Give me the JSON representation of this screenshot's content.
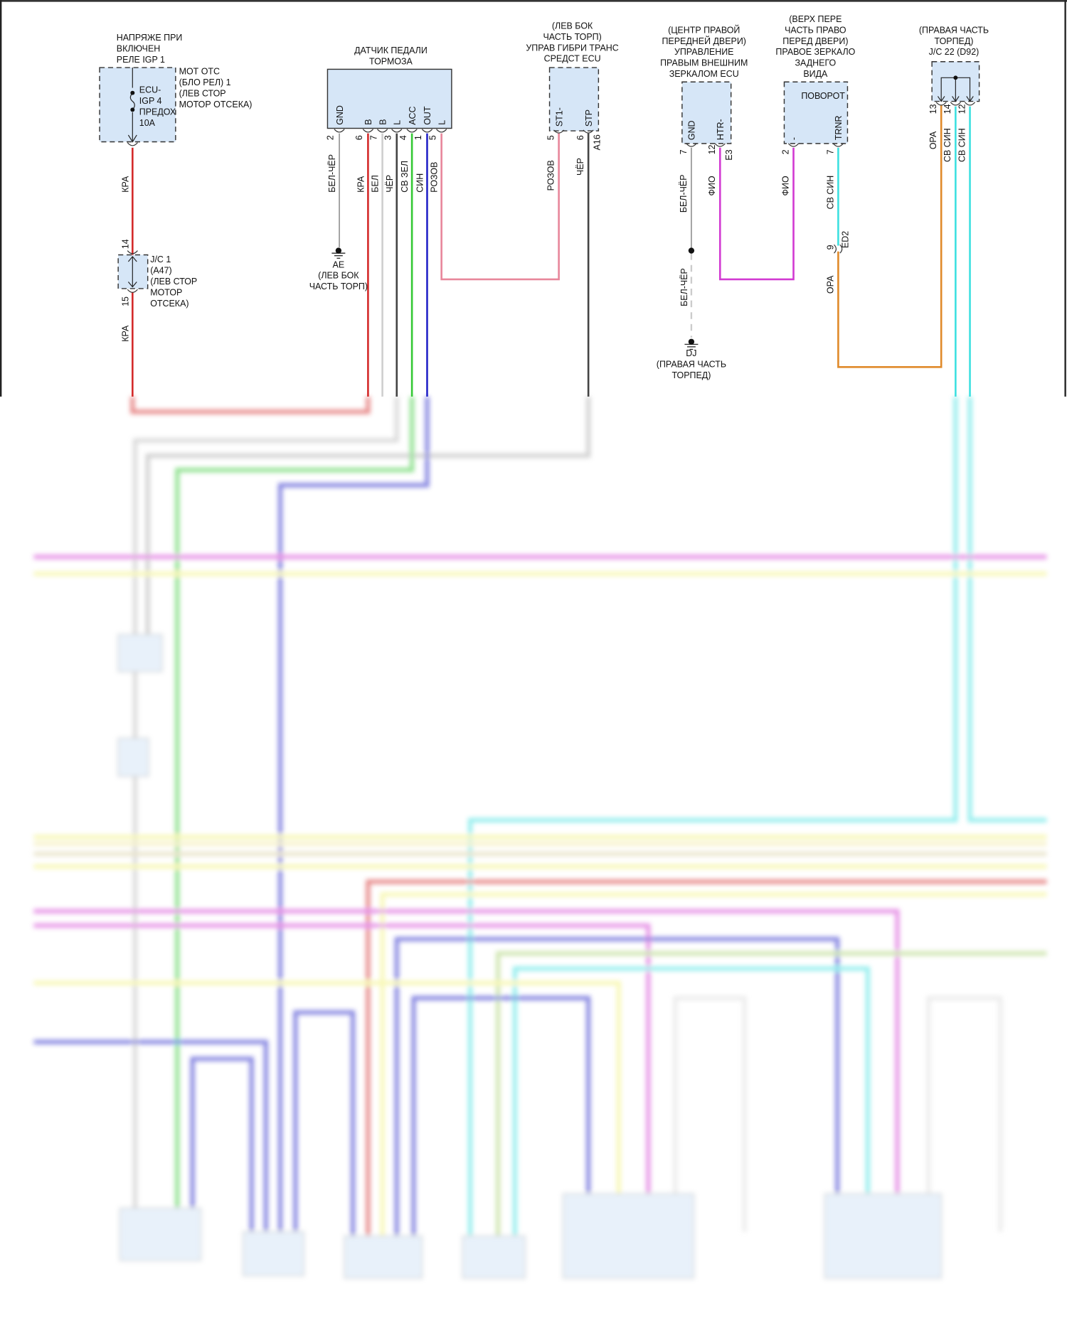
{
  "colors": {
    "red": "#d42a2a",
    "grey": "#9a9a9a",
    "white": "#cfcfcf",
    "black": "#444444",
    "green": "#35c935",
    "blue": "#2424c8",
    "pink": "#e8879b",
    "violet": "#d23ad2",
    "cyan": "#3ee0e0",
    "orange": "#e08a2a",
    "yellow": "#f2f27a",
    "connector_fill": "#d6e6f7"
  },
  "fuse": {
    "title": [
      "НАПРЯЖЕ ПРИ",
      "ВКЛЮЧЕН",
      "РЕЛЕ IGP 1"
    ],
    "inner": [
      "ECU-",
      "IGP 4",
      "ПРЕДОХ",
      "10A"
    ],
    "location": [
      "МОТ ОТС",
      "(БЛО РЕЛ) 1",
      "(ЛЕВ СТОР",
      "МОТОР ОТСЕКА)"
    ],
    "wire": "КРА"
  },
  "jc1": {
    "pin_top": "14",
    "pin_bottom": "15",
    "label": [
      "J/C 1",
      "(A47)",
      "(ЛЕВ СТОР",
      "МОТОР",
      "ОТСЕКА)"
    ],
    "wire": "КРА"
  },
  "brake_sensor": {
    "title": [
      "ДАТЧИК ПЕДАЛИ",
      "ТОРМОЗА"
    ],
    "pins": [
      {
        "terminal": "GND",
        "number": "2",
        "wire": "БЕЛ-ЧЁР",
        "color": "grey"
      },
      {
        "terminal": "B",
        "number": "6",
        "wire": "КРА",
        "color": "red"
      },
      {
        "terminal": "B",
        "number": "7",
        "wire": "БЕЛ",
        "color": "white"
      },
      {
        "terminal": "L",
        "number": "3",
        "wire": "ЧЁР",
        "color": "black"
      },
      {
        "terminal": "ACC",
        "number": "4",
        "wire": "СВ ЗЕЛ",
        "color": "green"
      },
      {
        "terminal": "OUT",
        "number": "1",
        "wire": "СИН",
        "color": "blue"
      },
      {
        "terminal": "L",
        "number": "5",
        "wire": "РОЗОВ",
        "color": "pink"
      }
    ]
  },
  "ground_ae": {
    "label": [
      "AE",
      "(ЛЕВ БОК",
      "ЧАСТЬ ТОРП)"
    ]
  },
  "hybrid_ecu": {
    "title": [
      "(ЛЕВ БОК",
      "ЧАСТЬ ТОРП)",
      "УПРАВ ГИБРИ ТРАНС",
      "СРЕДСТ ECU"
    ],
    "connector": "A16",
    "pins": [
      {
        "terminal": "ST1-",
        "number": "5",
        "wire": "РОЗОВ",
        "color": "pink"
      },
      {
        "terminal": "STP",
        "number": "6",
        "wire": "ЧЁР",
        "color": "black"
      }
    ]
  },
  "mirror_ecu": {
    "title": [
      "(ЦЕНТР ПРАВОЙ",
      "ПЕРЕДНЕЙ ДВЕРИ)",
      "УПРАВЛЕНИЕ",
      "ПРАВЫМ ВНЕШНИМ",
      "ЗЕРКАЛОМ ECU"
    ],
    "connector": "E3",
    "pins": [
      {
        "terminal": "GND",
        "number": "7",
        "wire": "БЕЛ-ЧЁР",
        "color": "grey"
      },
      {
        "terminal": "HTR-",
        "number": "12",
        "wire": "ФИО",
        "color": "violet"
      }
    ]
  },
  "ground_dj": {
    "wire": "БЕЛ-ЧЁР",
    "label": [
      "DJ",
      "(ПРАВАЯ ЧАСТЬ",
      "ТОРПЕД)"
    ]
  },
  "right_mirror": {
    "title": [
      "(ВЕРХ ПЕРЕ",
      "ЧАСТЬ ПРАВО",
      "ПЕРЕД ДВЕРИ)",
      "ПРАВОЕ ЗЕРКАЛО",
      "ЗАДНЕГО",
      "ВИДА"
    ],
    "inner": "ПОВОРОТ",
    "pins": [
      {
        "terminal": "-",
        "number": "2",
        "wire": "ФИО",
        "color": "violet"
      },
      {
        "terminal": "TRNR",
        "number": "7",
        "wire": "СВ СИН",
        "color": "cyan"
      }
    ]
  },
  "inline_connector": {
    "name": "ED2",
    "pin": "9",
    "wire_below": "ОРА"
  },
  "jc22": {
    "title": [
      "(ПРАВАЯ ЧАСТЬ",
      "ТОРПЕД)",
      "J/C 22 (D92)"
    ],
    "pins": [
      {
        "number": "13",
        "wire": "ОРА",
        "color": "orange"
      },
      {
        "number": "14",
        "wire": "СВ СИН",
        "color": "cyan"
      },
      {
        "number": "12",
        "wire": "СВ СИН",
        "color": "cyan"
      }
    ]
  }
}
